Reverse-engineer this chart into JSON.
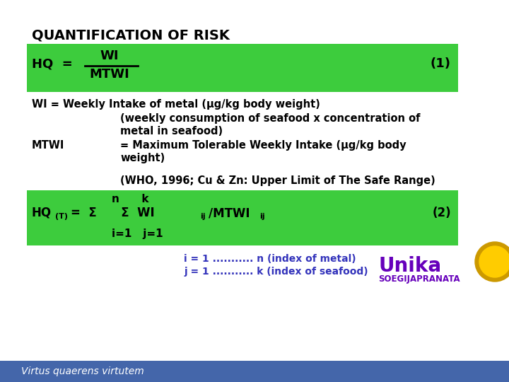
{
  "title": "QUANTIFICATION OF RISK",
  "bg_color": "#ffffff",
  "green_color": "#3dcc3d",
  "footer_color": "#4466aa",
  "footer_text": "Virtus quaerens virtutem",
  "index_line1": "i = 1 ........... n (index of metal)",
  "index_line2": "j = 1 ........... k (index of seafood)",
  "index_color": "#3333bb",
  "unika_color": "#6600bb"
}
